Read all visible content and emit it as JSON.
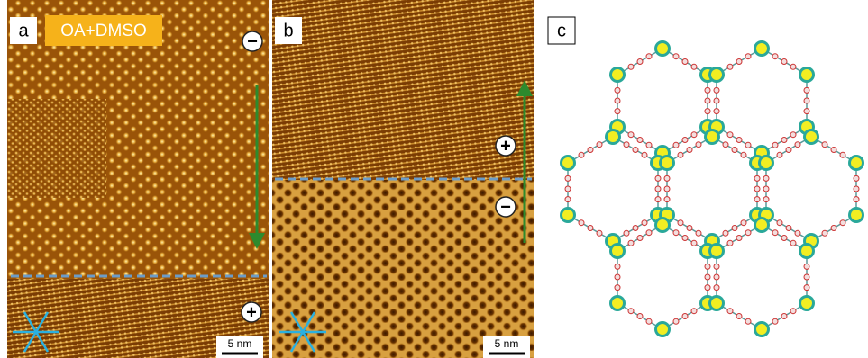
{
  "panels": [
    {
      "label": "a",
      "tag": "OA+DMSO",
      "signs": [
        "−",
        "+"
      ],
      "scale_bar": "5 nm"
    },
    {
      "label": "b",
      "signs": [
        "+",
        "−"
      ],
      "scale_bar": "5 nm"
    },
    {
      "label": "c"
    }
  ]
}
